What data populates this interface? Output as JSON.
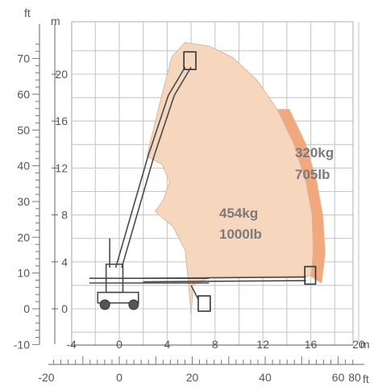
{
  "chart_data": {
    "type": "area",
    "title": "",
    "units": {
      "y_primary": "m",
      "y_secondary": "ft",
      "x_primary": "m",
      "x_secondary": "ft"
    },
    "y_ticks_m": [
      "0",
      "4",
      "8",
      "12",
      "16",
      "20"
    ],
    "y_ticks_ft": [
      "-10",
      "0",
      "10",
      "20",
      "30",
      "40",
      "50",
      "60",
      "70"
    ],
    "x_ticks_m": [
      "-4",
      "0",
      "4",
      "8",
      "12",
      "16",
      "20"
    ],
    "x_ticks_ft": [
      "-20",
      "0",
      "20",
      "40",
      "60",
      "80"
    ],
    "xlim_m": [
      -4,
      20
    ],
    "ylim_m": [
      -3,
      24
    ],
    "grid": true,
    "zones": [
      {
        "name": "454kg 1000lb",
        "load_kg": "454kg",
        "load_lb": "1000lb",
        "color": "#f6d7be",
        "outline_m": [
          [
            6.0,
            -0.5
          ],
          [
            6.1,
            1.0
          ],
          [
            6.1,
            2.0
          ],
          [
            7.6,
            2.7
          ],
          [
            16.0,
            2.8
          ],
          [
            16.2,
            4.8
          ],
          [
            16.1,
            8.0
          ],
          [
            15.6,
            10.8
          ],
          [
            14.6,
            14.0
          ],
          [
            13.2,
            17.0
          ],
          [
            11.5,
            19.5
          ],
          [
            9.5,
            21.4
          ],
          [
            7.5,
            22.4
          ],
          [
            5.5,
            22.7
          ],
          [
            4.4,
            21.5
          ],
          [
            3.5,
            18.0
          ],
          [
            2.3,
            13.0
          ],
          [
            3.6,
            12.3
          ],
          [
            4.2,
            10.8
          ],
          [
            3.7,
            9.3
          ],
          [
            3.0,
            8.3
          ],
          [
            4.5,
            7.0
          ],
          [
            5.5,
            5.0
          ],
          [
            5.8,
            2.0
          ]
        ]
      },
      {
        "name": "320kg 705lb",
        "load_kg": "320kg",
        "load_lb": "705lb",
        "color": "#f0a87c",
        "outline_m": [
          [
            16.0,
            2.8
          ],
          [
            16.9,
            2.2
          ],
          [
            17.2,
            4.8
          ],
          [
            17.0,
            8.0
          ],
          [
            16.5,
            10.8
          ],
          [
            15.6,
            14.0
          ],
          [
            14.2,
            17.0
          ],
          [
            13.2,
            17.0
          ],
          [
            14.6,
            14.0
          ],
          [
            15.6,
            10.8
          ],
          [
            16.1,
            8.0
          ],
          [
            16.2,
            4.8
          ]
        ]
      }
    ]
  }
}
